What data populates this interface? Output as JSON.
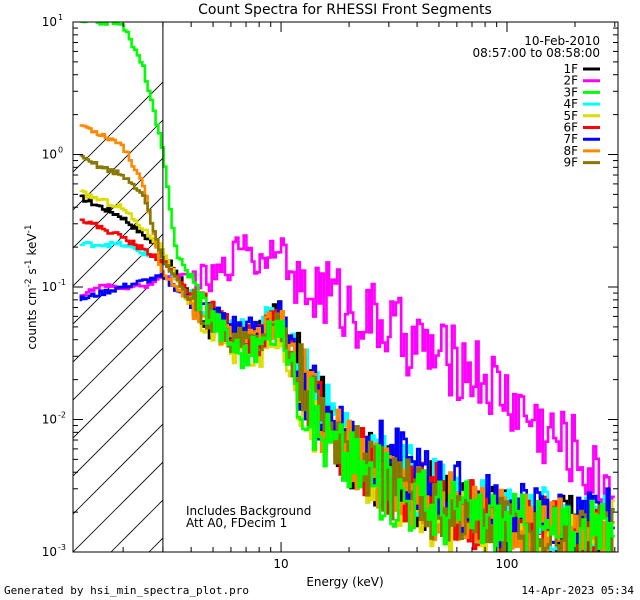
{
  "chart_data": {
    "type": "line",
    "title": "Count Spectra for RHESSI Front Segments",
    "xlabel": "Energy (keV)",
    "ylabel": "counts cm-2 s-1 keV-1",
    "xscale": "log",
    "yscale": "log",
    "xlim": [
      1.2,
      310
    ],
    "ylim": [
      0.001,
      10
    ],
    "x_ticks": [
      {
        "value": 10,
        "label": "10"
      },
      {
        "value": 100,
        "label": "100"
      }
    ],
    "y_ticks": [
      {
        "value": 10,
        "label": "10",
        "exp": "1"
      },
      {
        "value": 1,
        "label": "10",
        "exp": "0"
      },
      {
        "value": 0.1,
        "label": "10",
        "exp": "-1"
      },
      {
        "value": 0.01,
        "label": "10",
        "exp": "-2"
      },
      {
        "value": 0.001,
        "label": "10",
        "exp": "-3"
      }
    ],
    "attenuator_threshold_kev": 3.0,
    "date": "10-Feb-2010",
    "time_range": "08:57:00 to 08:58:00",
    "annotations": [
      "Includes Background",
      "Att A0, FDecim 1"
    ],
    "series": [
      {
        "name": "1F",
        "color": "#000000",
        "points": [
          [
            1.3,
            0.48
          ],
          [
            2,
            0.34
          ],
          [
            3,
            0.19
          ],
          [
            5,
            0.05
          ],
          [
            6,
            0.038
          ],
          [
            8,
            0.04
          ],
          [
            10,
            0.065
          ],
          [
            12,
            0.025
          ],
          [
            15,
            0.012
          ],
          [
            20,
            0.006
          ],
          [
            30,
            0.0035
          ],
          [
            50,
            0.0025
          ],
          [
            80,
            0.0018
          ],
          [
            120,
            0.0016
          ],
          [
            200,
            0.0014
          ],
          [
            300,
            0.0014
          ]
        ]
      },
      {
        "name": "2F",
        "color": "#ff00ff",
        "points": [
          [
            1.3,
            0.085
          ],
          [
            1.6,
            0.1
          ],
          [
            2.5,
            0.1
          ],
          [
            3,
            0.12
          ],
          [
            4,
            0.12
          ],
          [
            5,
            0.11
          ],
          [
            6,
            0.15
          ],
          [
            7,
            0.25
          ],
          [
            8,
            0.14
          ],
          [
            9,
            0.2
          ],
          [
            10,
            0.24
          ],
          [
            12,
            0.08
          ],
          [
            15,
            0.1
          ],
          [
            20,
            0.07
          ],
          [
            30,
            0.05
          ],
          [
            50,
            0.03
          ],
          [
            70,
            0.025
          ],
          [
            100,
            0.015
          ],
          [
            150,
            0.008
          ],
          [
            200,
            0.006
          ],
          [
            250,
            0.0035
          ],
          [
            300,
            0.0035
          ]
        ]
      },
      {
        "name": "3F",
        "color": "#00ff00",
        "points": [
          [
            1.3,
            10
          ],
          [
            2,
            10
          ],
          [
            2.5,
            4.5
          ],
          [
            3,
            1.2
          ],
          [
            3.5,
            0.18
          ],
          [
            5,
            0.06
          ],
          [
            6,
            0.04
          ],
          [
            7,
            0.03
          ],
          [
            8,
            0.035
          ],
          [
            10,
            0.05
          ],
          [
            12,
            0.02
          ],
          [
            15,
            0.008
          ],
          [
            20,
            0.005
          ],
          [
            30,
            0.003
          ],
          [
            50,
            0.0022
          ],
          [
            80,
            0.0018
          ],
          [
            120,
            0.0015
          ],
          [
            200,
            0.0013
          ],
          [
            300,
            0.0013
          ]
        ]
      },
      {
        "name": "4F",
        "color": "#00ffff",
        "points": [
          [
            1.3,
            0.21
          ],
          [
            2,
            0.21
          ],
          [
            3,
            0.16
          ],
          [
            4,
            0.08
          ],
          [
            6,
            0.045
          ],
          [
            8,
            0.045
          ],
          [
            10,
            0.07
          ],
          [
            12,
            0.028
          ],
          [
            15,
            0.015
          ],
          [
            20,
            0.008
          ],
          [
            30,
            0.004
          ],
          [
            50,
            0.003
          ],
          [
            80,
            0.002
          ],
          [
            120,
            0.0017
          ],
          [
            200,
            0.0015
          ],
          [
            300,
            0.0015
          ]
        ]
      },
      {
        "name": "5F",
        "color": "#dddd00",
        "points": [
          [
            1.3,
            0.52
          ],
          [
            2,
            0.4
          ],
          [
            3,
            0.2
          ],
          [
            4,
            0.07
          ],
          [
            6,
            0.035
          ],
          [
            8,
            0.03
          ],
          [
            10,
            0.045
          ],
          [
            12,
            0.018
          ],
          [
            15,
            0.009
          ],
          [
            20,
            0.005
          ],
          [
            30,
            0.003
          ],
          [
            50,
            0.002
          ],
          [
            80,
            0.0017
          ],
          [
            120,
            0.0015
          ],
          [
            200,
            0.0013
          ],
          [
            300,
            0.0013
          ]
        ]
      },
      {
        "name": "6F",
        "color": "#ff0000",
        "points": [
          [
            1.3,
            0.33
          ],
          [
            2,
            0.24
          ],
          [
            3,
            0.16
          ],
          [
            4,
            0.09
          ],
          [
            6,
            0.045
          ],
          [
            8,
            0.04
          ],
          [
            10,
            0.06
          ],
          [
            12,
            0.022
          ],
          [
            15,
            0.011
          ],
          [
            20,
            0.006
          ],
          [
            30,
            0.0035
          ],
          [
            50,
            0.0025
          ],
          [
            80,
            0.0018
          ],
          [
            120,
            0.0016
          ],
          [
            200,
            0.0014
          ],
          [
            300,
            0.0014
          ]
        ]
      },
      {
        "name": "7F",
        "color": "#0000ff",
        "points": [
          [
            1.3,
            0.08
          ],
          [
            2,
            0.1
          ],
          [
            3,
            0.12
          ],
          [
            4,
            0.08
          ],
          [
            6,
            0.05
          ],
          [
            8,
            0.045
          ],
          [
            10,
            0.06
          ],
          [
            12,
            0.025
          ],
          [
            15,
            0.012
          ],
          [
            20,
            0.008
          ],
          [
            30,
            0.005
          ],
          [
            50,
            0.003
          ],
          [
            80,
            0.0022
          ],
          [
            120,
            0.0018
          ],
          [
            200,
            0.0016
          ],
          [
            300,
            0.0016
          ]
        ]
      },
      {
        "name": "8F",
        "color": "#ff8800",
        "points": [
          [
            1.3,
            1.7
          ],
          [
            2,
            1.2
          ],
          [
            2.5,
            0.6
          ],
          [
            3,
            0.13
          ],
          [
            4,
            0.08
          ],
          [
            6,
            0.04
          ],
          [
            8,
            0.04
          ],
          [
            10,
            0.06
          ],
          [
            12,
            0.022
          ],
          [
            15,
            0.011
          ],
          [
            20,
            0.006
          ],
          [
            30,
            0.0032
          ],
          [
            50,
            0.0023
          ],
          [
            80,
            0.0017
          ],
          [
            120,
            0.0015
          ],
          [
            200,
            0.0013
          ],
          [
            300,
            0.0013
          ]
        ]
      },
      {
        "name": "9F",
        "color": "#887700",
        "points": [
          [
            1.3,
            0.95
          ],
          [
            2,
            0.7
          ],
          [
            2.5,
            0.5
          ],
          [
            3,
            0.17
          ],
          [
            4,
            0.08
          ],
          [
            6,
            0.042
          ],
          [
            8,
            0.038
          ],
          [
            10,
            0.055
          ],
          [
            12,
            0.022
          ],
          [
            15,
            0.011
          ],
          [
            20,
            0.006
          ],
          [
            30,
            0.0032
          ],
          [
            50,
            0.0022
          ],
          [
            80,
            0.0016
          ],
          [
            120,
            0.0014
          ],
          [
            200,
            0.0012
          ],
          [
            300,
            0.0012
          ]
        ]
      }
    ]
  },
  "footer": {
    "generated_by": "Generated by hsi_min_spectra_plot.pro",
    "timestamp": "14-Apr-2023 05:34"
  }
}
